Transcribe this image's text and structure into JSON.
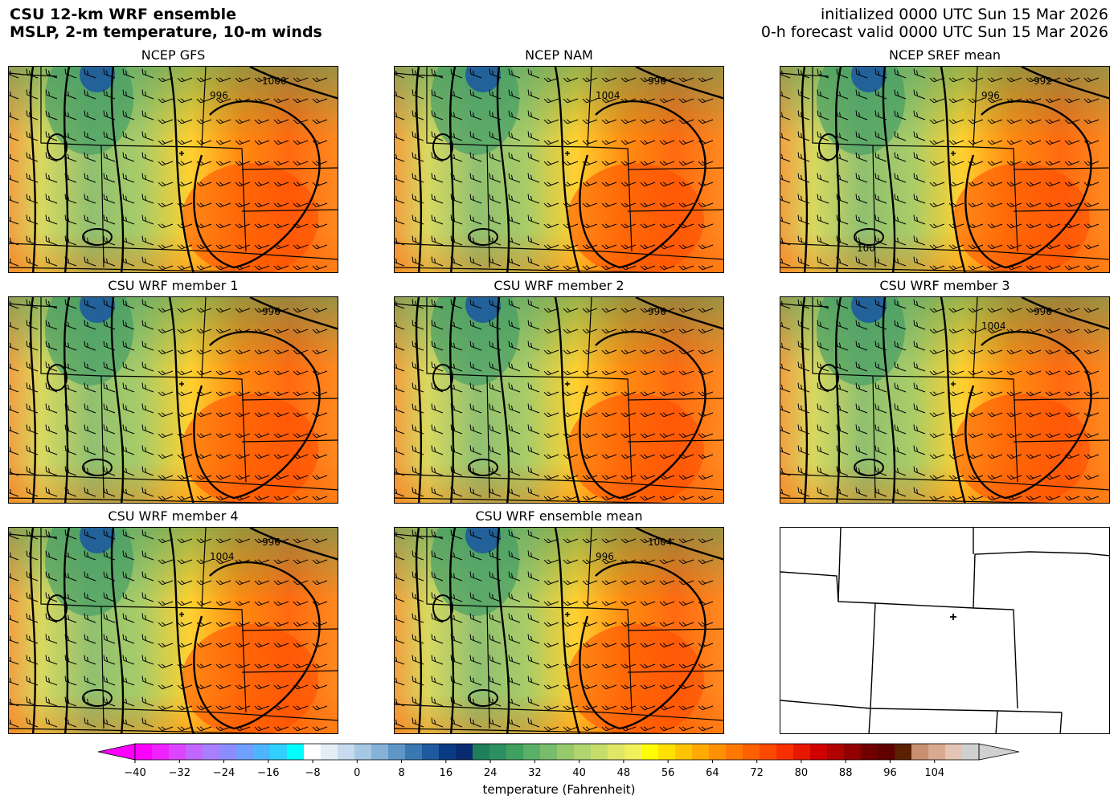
{
  "header": {
    "title_line1": "CSU 12-km WRF ensemble",
    "title_line2": "MSLP, 2-m temperature, 10-m winds",
    "init_line": "initialized 0000 UTC Sun 15 Mar 2026",
    "valid_line": "0-h forecast valid 0000 UTC Sun 15 Mar 2026"
  },
  "panels": [
    {
      "title": "NCEP GFS",
      "isobar_labels": [
        "1000",
        "996"
      ]
    },
    {
      "title": "NCEP NAM",
      "isobar_labels": [
        "996",
        "1004"
      ]
    },
    {
      "title": "NCEP SREF mean",
      "isobar_labels": [
        "992",
        "996",
        "100"
      ]
    },
    {
      "title": "CSU WRF member 1",
      "isobar_labels": [
        "996"
      ]
    },
    {
      "title": "CSU WRF member 2",
      "isobar_labels": [
        "996"
      ]
    },
    {
      "title": "CSU WRF member 3",
      "isobar_labels": [
        "996",
        "1004"
      ]
    },
    {
      "title": "CSU WRF member 4",
      "isobar_labels": [
        "996",
        "1004"
      ]
    },
    {
      "title": "CSU WRF ensemble mean",
      "isobar_labels": [
        "1004",
        "996"
      ]
    },
    {
      "title": "",
      "isobar_labels": []
    }
  ],
  "colorbar": {
    "label": "temperature (Fahrenheit)",
    "min": -40,
    "max": 112,
    "ticks": [
      -40,
      -32,
      -24,
      -16,
      -8,
      0,
      8,
      16,
      24,
      32,
      40,
      48,
      56,
      64,
      72,
      80,
      88,
      96,
      104
    ],
    "colors": [
      "#ff00ff",
      "#ee22ff",
      "#dd44ff",
      "#c266ff",
      "#a77fff",
      "#8c8cff",
      "#6f9fff",
      "#4fb4ff",
      "#2fd0ff",
      "#00ffff",
      "#ffffff",
      "#e4eef6",
      "#c6dcee",
      "#a6c8e4",
      "#86b2d8",
      "#5e96c6",
      "#3a78b2",
      "#1e5a9e",
      "#0a3a84",
      "#082a70",
      "#1e7f5a",
      "#2d9060",
      "#3fa060",
      "#5ab068",
      "#78bc6c",
      "#96c86c",
      "#b0d470",
      "#c8dc6c",
      "#e0e668",
      "#f2f05a",
      "#ffff00",
      "#ffe000",
      "#ffc400",
      "#ffaa00",
      "#ff9000",
      "#ff7800",
      "#ff6000",
      "#ff4800",
      "#f83000",
      "#e81800",
      "#d00000",
      "#b00000",
      "#900000",
      "#700000",
      "#600000",
      "#5a2000",
      "#c89070",
      "#d8aa90",
      "#e4c4b4",
      "#d0d0d0"
    ]
  }
}
